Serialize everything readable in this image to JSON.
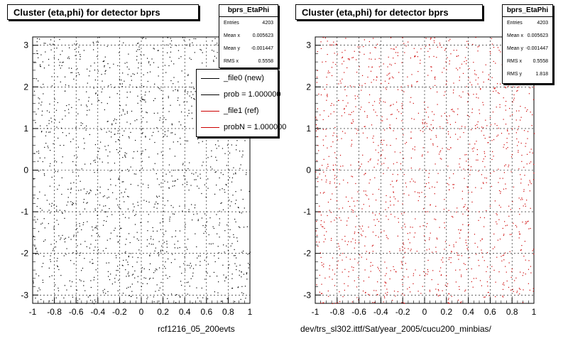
{
  "footer": {
    "left_label": "rcf1216_05_200evts",
    "right_label": "dev/trs_sl302.ittf/Sat/year_2005/cucu200_minbias/"
  },
  "legend": {
    "entries": [
      {
        "label": "_file0 (new)",
        "color": "#000000"
      },
      {
        "label": "prob = 1.000000",
        "color": "#000000"
      },
      {
        "label": "_file1 (ref)",
        "color": "#cc0000"
      },
      {
        "label": "probN = 1.000000",
        "color": "#cc0000"
      }
    ]
  },
  "chart_data": [
    {
      "type": "scatter",
      "title": "Cluster (eta,phi) for detector bprs",
      "xlabel": "",
      "ylabel": "",
      "xlim": [
        -1,
        1
      ],
      "ylim": [
        -3.2,
        3.2
      ],
      "x_ticks": [
        "-1",
        "-0.8",
        "-0.6",
        "-0.4",
        "-0.2",
        "0",
        "0.2",
        "0.4",
        "0.6",
        "0.8",
        "1"
      ],
      "y_ticks": [
        "-3",
        "-2",
        "-1",
        "0",
        "1",
        "2",
        "3"
      ],
      "grid": true,
      "marker_color": "#000000",
      "stats": {
        "name": "bprs_EtaPhi",
        "rows": [
          {
            "label": "Entries",
            "value": "4203"
          },
          {
            "label": "Mean x",
            "value": "0.005623"
          },
          {
            "label": "Mean y",
            "value": "-0.001447"
          },
          {
            "label": "RMS x",
            "value": "0.5558"
          }
        ]
      }
    },
    {
      "type": "scatter",
      "title": "Cluster (eta,phi) for detector bprs",
      "xlabel": "",
      "ylabel": "",
      "xlim": [
        -1,
        1
      ],
      "ylim": [
        -3.2,
        3.2
      ],
      "x_ticks": [
        "-1",
        "-0.8",
        "-0.6",
        "-0.4",
        "-0.2",
        "0",
        "0.2",
        "0.4",
        "0.6",
        "0.8",
        "1"
      ],
      "y_ticks": [
        "-3",
        "-2",
        "-1",
        "0",
        "1",
        "2",
        "3"
      ],
      "grid": true,
      "marker_color": "#cc0000",
      "stats": {
        "name": "bprs_EtaPhi",
        "rows": [
          {
            "label": "Entries",
            "value": "4203"
          },
          {
            "label": "Mean x",
            "value": "0.005623"
          },
          {
            "label": "Mean y",
            "value": "-0.001447"
          },
          {
            "label": "RMS x",
            "value": "0.5558"
          },
          {
            "label": "RMS y",
            "value": "1.818"
          }
        ]
      }
    }
  ]
}
